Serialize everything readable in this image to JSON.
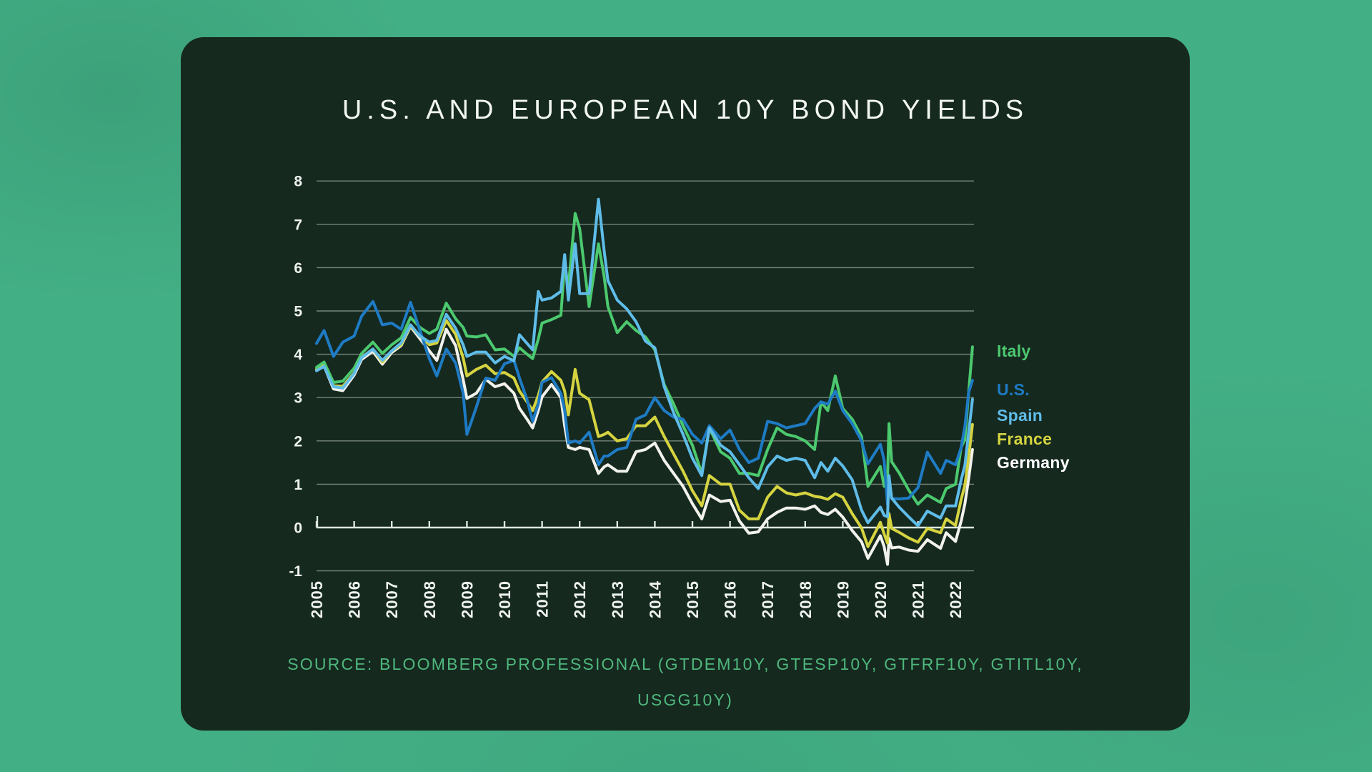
{
  "app": {
    "background_color": "#43AF85",
    "card_color": "#15291F"
  },
  "header": {
    "title": "U.S. AND EUROPEAN 10Y BOND YIELDS"
  },
  "source": {
    "lines": [
      "SOURCE: BLOOMBERG PROFESSIONAL (GTDEM10Y, GTESP10Y, GTFRF10Y, GTITL10Y,",
      "USGG10Y)"
    ],
    "color": "#4FB77D"
  },
  "legend": [
    {
      "label": "Italy",
      "color": "#4CC96E"
    },
    {
      "label": "U.S.",
      "color": "#1E7BC4"
    },
    {
      "label": "Spain",
      "color": "#5FBCE8"
    },
    {
      "label": "France",
      "color": "#D5D440"
    },
    {
      "label": "Germany",
      "color": "#FFFFFF"
    }
  ],
  "chart_data": {
    "type": "line",
    "title": "U.S. AND EUROPEAN 10Y BOND YIELDS",
    "xlabel": "",
    "ylabel": "",
    "grid": true,
    "legend_position": "right",
    "xlim": [
      2005,
      2022.5
    ],
    "ylim": [
      -1,
      8
    ],
    "x_ticks": [
      2005,
      2006,
      2007,
      2008,
      2009,
      2010,
      2011,
      2012,
      2013,
      2014,
      2015,
      2016,
      2017,
      2018,
      2019,
      2020,
      2021,
      2022
    ],
    "y_ticks": [
      8,
      7,
      6,
      5,
      4,
      3,
      2,
      1,
      0,
      -1
    ],
    "x": [
      2005.0,
      2005.2,
      2005.45,
      2005.7,
      2006.0,
      2006.2,
      2006.5,
      2006.75,
      2007.0,
      2007.25,
      2007.5,
      2007.75,
      2008.0,
      2008.2,
      2008.45,
      2008.7,
      2008.9,
      2009.0,
      2009.25,
      2009.5,
      2009.75,
      2010.0,
      2010.25,
      2010.4,
      2010.6,
      2010.75,
      2010.9,
      2011.0,
      2011.25,
      2011.5,
      2011.6,
      2011.7,
      2011.88,
      2012.0,
      2012.25,
      2012.5,
      2012.65,
      2012.75,
      2013.0,
      2013.25,
      2013.5,
      2013.75,
      2014.0,
      2014.25,
      2014.5,
      2014.75,
      2015.0,
      2015.25,
      2015.45,
      2015.75,
      2016.0,
      2016.25,
      2016.5,
      2016.75,
      2017.0,
      2017.25,
      2017.5,
      2017.75,
      2018.0,
      2018.25,
      2018.42,
      2018.6,
      2018.8,
      2019.0,
      2019.25,
      2019.5,
      2019.67,
      2020.0,
      2020.1,
      2020.19,
      2020.23,
      2020.3,
      2020.5,
      2020.75,
      2021.0,
      2021.25,
      2021.6,
      2021.75,
      2022.0,
      2022.15,
      2022.25,
      2022.35,
      2022.45
    ],
    "series": [
      {
        "name": "Italy",
        "color": "#4CC96E",
        "values": [
          3.7,
          3.82,
          3.35,
          3.38,
          3.68,
          4.02,
          4.28,
          4.02,
          4.22,
          4.38,
          4.85,
          4.62,
          4.48,
          4.58,
          5.18,
          4.82,
          4.62,
          4.42,
          4.4,
          4.45,
          4.1,
          4.12,
          3.95,
          4.15,
          4.0,
          3.9,
          4.35,
          4.72,
          4.8,
          4.9,
          6.1,
          5.55,
          7.25,
          6.9,
          5.1,
          6.55,
          5.8,
          5.1,
          4.5,
          4.75,
          4.55,
          4.4,
          4.1,
          3.3,
          2.85,
          2.35,
          1.9,
          1.25,
          2.3,
          1.75,
          1.6,
          1.25,
          1.25,
          1.2,
          1.8,
          2.3,
          2.15,
          2.1,
          2.0,
          1.8,
          2.9,
          2.7,
          3.5,
          2.75,
          2.5,
          2.1,
          0.95,
          1.41,
          0.95,
          1.1,
          2.4,
          1.52,
          1.26,
          0.87,
          0.54,
          0.75,
          0.58,
          0.9,
          1.0,
          1.85,
          2.04,
          3.13,
          4.17
        ]
      },
      {
        "name": "U.S.",
        "color": "#1E7BC4",
        "values": [
          4.25,
          4.55,
          3.95,
          4.28,
          4.42,
          4.88,
          5.22,
          4.68,
          4.72,
          4.58,
          5.2,
          4.55,
          3.9,
          3.5,
          4.12,
          3.8,
          3.1,
          2.15,
          2.78,
          3.45,
          3.4,
          3.78,
          3.86,
          3.45,
          2.95,
          2.45,
          2.85,
          3.35,
          3.46,
          3.1,
          2.7,
          1.95,
          2.0,
          1.95,
          2.2,
          1.45,
          1.65,
          1.65,
          1.8,
          1.85,
          2.5,
          2.6,
          3.0,
          2.7,
          2.55,
          2.5,
          2.15,
          1.95,
          2.35,
          2.05,
          2.25,
          1.8,
          1.5,
          1.6,
          2.45,
          2.4,
          2.3,
          2.35,
          2.4,
          2.75,
          2.9,
          2.85,
          3.15,
          2.7,
          2.4,
          2.0,
          1.47,
          1.92,
          1.55,
          0.54,
          1.1,
          0.67,
          0.66,
          0.68,
          0.92,
          1.74,
          1.25,
          1.55,
          1.45,
          1.85,
          2.34,
          3.12,
          3.4
        ]
      },
      {
        "name": "Spain",
        "color": "#5FBCE8",
        "values": [
          3.62,
          3.72,
          3.25,
          3.22,
          3.56,
          3.92,
          4.12,
          3.86,
          4.08,
          4.26,
          4.68,
          4.42,
          4.28,
          4.32,
          4.92,
          4.6,
          4.22,
          3.95,
          4.05,
          4.05,
          3.8,
          3.95,
          3.85,
          4.45,
          4.25,
          4.1,
          5.45,
          5.25,
          5.3,
          5.45,
          6.3,
          5.25,
          6.55,
          5.4,
          5.4,
          7.58,
          6.4,
          5.7,
          5.25,
          5.05,
          4.75,
          4.3,
          4.15,
          3.25,
          2.65,
          2.15,
          1.6,
          1.2,
          2.3,
          1.9,
          1.75,
          1.45,
          1.15,
          0.9,
          1.4,
          1.65,
          1.55,
          1.6,
          1.55,
          1.15,
          1.5,
          1.3,
          1.6,
          1.42,
          1.1,
          0.4,
          0.11,
          0.47,
          0.28,
          0.25,
          1.2,
          0.68,
          0.47,
          0.25,
          0.04,
          0.38,
          0.22,
          0.5,
          0.5,
          1.1,
          1.44,
          2.2,
          2.96
        ]
      },
      {
        "name": "France",
        "color": "#D5D440",
        "values": [
          3.65,
          3.76,
          3.27,
          3.26,
          3.57,
          3.93,
          4.12,
          3.82,
          4.08,
          4.22,
          4.66,
          4.42,
          4.22,
          4.26,
          4.78,
          4.46,
          3.92,
          3.5,
          3.65,
          3.75,
          3.55,
          3.58,
          3.45,
          3.15,
          2.9,
          2.7,
          3.05,
          3.36,
          3.6,
          3.4,
          3.15,
          2.6,
          3.65,
          3.1,
          2.95,
          2.1,
          2.15,
          2.2,
          2.0,
          2.05,
          2.35,
          2.35,
          2.55,
          2.1,
          1.7,
          1.3,
          0.85,
          0.5,
          1.2,
          1.0,
          1.0,
          0.4,
          0.2,
          0.2,
          0.7,
          0.95,
          0.8,
          0.75,
          0.8,
          0.72,
          0.7,
          0.65,
          0.78,
          0.7,
          0.32,
          -0.01,
          -0.44,
          0.12,
          -0.15,
          -0.36,
          0.32,
          -0.02,
          -0.11,
          -0.24,
          -0.34,
          -0.02,
          -0.12,
          0.2,
          0.05,
          0.65,
          0.98,
          1.63,
          2.38
        ]
      },
      {
        "name": "Germany",
        "color": "#F2F2EC",
        "values": [
          3.65,
          3.73,
          3.2,
          3.16,
          3.52,
          3.88,
          4.07,
          3.77,
          4.04,
          4.2,
          4.64,
          4.36,
          4.08,
          3.86,
          4.58,
          4.2,
          3.42,
          2.98,
          3.1,
          3.42,
          3.25,
          3.32,
          3.1,
          2.75,
          2.5,
          2.3,
          2.7,
          3.02,
          3.3,
          3.0,
          2.35,
          1.85,
          1.8,
          1.85,
          1.8,
          1.25,
          1.4,
          1.45,
          1.3,
          1.3,
          1.75,
          1.8,
          1.95,
          1.55,
          1.25,
          0.95,
          0.55,
          0.2,
          0.75,
          0.6,
          0.63,
          0.15,
          -0.13,
          -0.1,
          0.2,
          0.35,
          0.45,
          0.45,
          0.42,
          0.5,
          0.35,
          0.3,
          0.42,
          0.24,
          -0.07,
          -0.33,
          -0.71,
          -0.19,
          -0.44,
          -0.85,
          -0.25,
          -0.47,
          -0.45,
          -0.52,
          -0.55,
          -0.28,
          -0.48,
          -0.12,
          -0.32,
          0.15,
          0.55,
          1.13,
          1.8
        ]
      }
    ]
  }
}
